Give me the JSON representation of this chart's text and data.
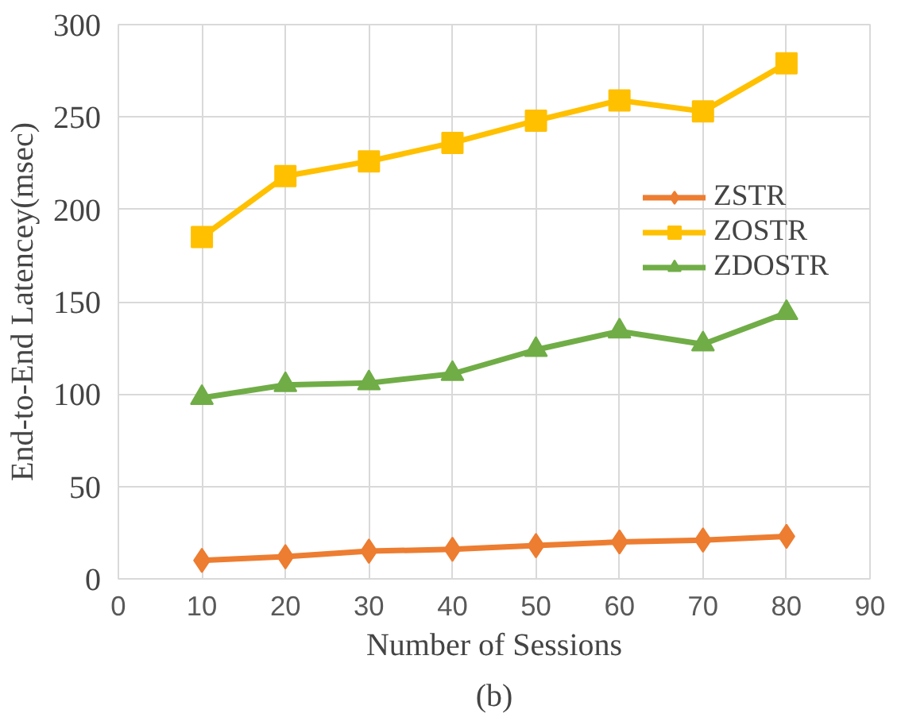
{
  "chart_data": {
    "type": "line",
    "xlabel": "Number of Sessions",
    "ylabel": "End-to-End Latencey(msec)",
    "annotations": [
      "(b)"
    ],
    "x": [
      10,
      20,
      30,
      40,
      50,
      60,
      70,
      80
    ],
    "series": [
      {
        "name": "ZSTR",
        "color": "#ed7d31",
        "marker": "diamond",
        "values": [
          10,
          12,
          15,
          16,
          18,
          20,
          21,
          23
        ]
      },
      {
        "name": "ZOSTR",
        "color": "#ffc000",
        "marker": "square",
        "values": [
          185,
          218,
          226,
          236,
          248,
          259,
          253,
          279
        ]
      },
      {
        "name": "ZDOSTR",
        "color": "#70ad47",
        "marker": "triangle",
        "values": [
          98,
          105,
          106,
          111,
          124,
          134,
          127,
          144
        ]
      }
    ],
    "xlim": [
      0,
      90
    ],
    "xticks": [
      0,
      10,
      20,
      30,
      40,
      50,
      60,
      70,
      80,
      90
    ],
    "ylim": [
      0,
      300
    ],
    "yticks": [
      0,
      50,
      100,
      150,
      200,
      250,
      300
    ],
    "grid": true,
    "legend": "right",
    "line_style": "solid"
  }
}
